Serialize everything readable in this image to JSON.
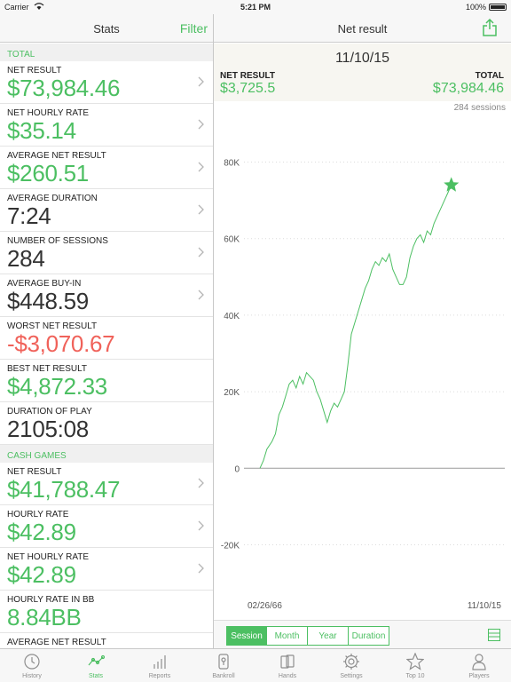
{
  "status_bar": {
    "carrier": "Carrier",
    "time": "5:21 PM",
    "battery": "100%"
  },
  "left_nav": {
    "title": "Stats",
    "filter_label": "Filter"
  },
  "right_nav": {
    "title": "Net result"
  },
  "sections": [
    {
      "title": "TOTAL",
      "rows": [
        {
          "label": "NET RESULT",
          "value": "$73,984.46",
          "color": "green",
          "chevron": true
        },
        {
          "label": "NET HOURLY RATE",
          "value": "$35.14",
          "color": "green",
          "chevron": true
        },
        {
          "label": "AVERAGE NET RESULT",
          "value": "$260.51",
          "color": "green",
          "chevron": true
        },
        {
          "label": "AVERAGE DURATION",
          "value": "7:24",
          "color": "dark",
          "chevron": true
        },
        {
          "label": "NUMBER OF SESSIONS",
          "value": "284",
          "color": "dark",
          "chevron": true
        },
        {
          "label": "AVERAGE BUY-IN",
          "value": "$448.59",
          "color": "dark",
          "chevron": true
        },
        {
          "label": "WORST NET RESULT",
          "value": "-$3,070.67",
          "color": "red",
          "chevron": false
        },
        {
          "label": "BEST NET RESULT",
          "value": "$4,872.33",
          "color": "green",
          "chevron": false
        },
        {
          "label": "DURATION OF PLAY",
          "value": "2105:08",
          "color": "dark",
          "chevron": false
        }
      ]
    },
    {
      "title": "CASH GAMES",
      "rows": [
        {
          "label": "NET RESULT",
          "value": "$41,788.47",
          "color": "green",
          "chevron": true
        },
        {
          "label": "HOURLY RATE",
          "value": "$42.89",
          "color": "green",
          "chevron": true
        },
        {
          "label": "NET HOURLY RATE",
          "value": "$42.89",
          "color": "green",
          "chevron": true
        },
        {
          "label": "HOURLY RATE IN BB",
          "value": "8.84BB",
          "color": "green",
          "chevron": false
        },
        {
          "label": "AVERAGE NET RESULT",
          "value": "",
          "color": "green",
          "chevron": false
        }
      ]
    }
  ],
  "detail": {
    "date": "11/10/15",
    "net_result_label": "NET RESULT",
    "net_result_value": "$3,725.5",
    "total_label": "TOTAL",
    "total_value": "$73,984.46",
    "sessions": "284 sessions"
  },
  "chart_data": {
    "type": "line",
    "ylim": [
      -28000,
      88000
    ],
    "y_ticks": [
      80000,
      60000,
      40000,
      20000,
      0,
      -20000
    ],
    "y_tick_labels": [
      "80K",
      "60K",
      "40K",
      "20K",
      "0",
      "-20K"
    ],
    "x_start_label": "02/26/66",
    "x_end_label": "11/10/15",
    "x_range": [
      0,
      284
    ],
    "line_color": "#4cbf62",
    "points": [
      [
        0,
        0
      ],
      [
        4,
        2000
      ],
      [
        8,
        5000
      ],
      [
        14,
        7000
      ],
      [
        18,
        9000
      ],
      [
        22,
        14000
      ],
      [
        26,
        16000
      ],
      [
        30,
        19000
      ],
      [
        34,
        22000
      ],
      [
        38,
        23000
      ],
      [
        42,
        21000
      ],
      [
        46,
        24000
      ],
      [
        50,
        22000
      ],
      [
        54,
        25000
      ],
      [
        58,
        24000
      ],
      [
        62,
        23000
      ],
      [
        66,
        20000
      ],
      [
        70,
        18000
      ],
      [
        74,
        15000
      ],
      [
        78,
        12000
      ],
      [
        82,
        15000
      ],
      [
        86,
        17000
      ],
      [
        90,
        16000
      ],
      [
        94,
        18000
      ],
      [
        98,
        20000
      ],
      [
        102,
        27000
      ],
      [
        106,
        35000
      ],
      [
        110,
        38000
      ],
      [
        114,
        41000
      ],
      [
        118,
        44000
      ],
      [
        122,
        47000
      ],
      [
        126,
        49000
      ],
      [
        130,
        52000
      ],
      [
        134,
        54000
      ],
      [
        138,
        53000
      ],
      [
        142,
        55000
      ],
      [
        146,
        54000
      ],
      [
        150,
        56000
      ],
      [
        154,
        52000
      ],
      [
        158,
        50000
      ],
      [
        162,
        48000
      ],
      [
        166,
        48000
      ],
      [
        170,
        50000
      ],
      [
        174,
        55000
      ],
      [
        178,
        58000
      ],
      [
        182,
        60000
      ],
      [
        186,
        61000
      ],
      [
        190,
        59000
      ],
      [
        194,
        62000
      ],
      [
        198,
        61000
      ],
      [
        202,
        64000
      ],
      [
        206,
        66000
      ],
      [
        210,
        68000
      ],
      [
        214,
        70000
      ],
      [
        218,
        72000
      ],
      [
        222,
        73984
      ]
    ],
    "marker": "star"
  },
  "segments": [
    "Session",
    "Month",
    "Year",
    "Duration"
  ],
  "active_segment": "Session",
  "tabs": [
    {
      "label": "History",
      "icon": "clock-icon"
    },
    {
      "label": "Stats",
      "icon": "stats-icon"
    },
    {
      "label": "Reports",
      "icon": "bar-chart-icon"
    },
    {
      "label": "Bankroll",
      "icon": "bankroll-icon"
    },
    {
      "label": "Hands",
      "icon": "cards-icon"
    },
    {
      "label": "Settings",
      "icon": "gear-icon"
    },
    {
      "label": "Top 10",
      "icon": "star-icon"
    },
    {
      "label": "Players",
      "icon": "person-icon"
    }
  ],
  "active_tab": "Stats",
  "accent_color": "#4cbf62",
  "negative_color": "#f0625a"
}
